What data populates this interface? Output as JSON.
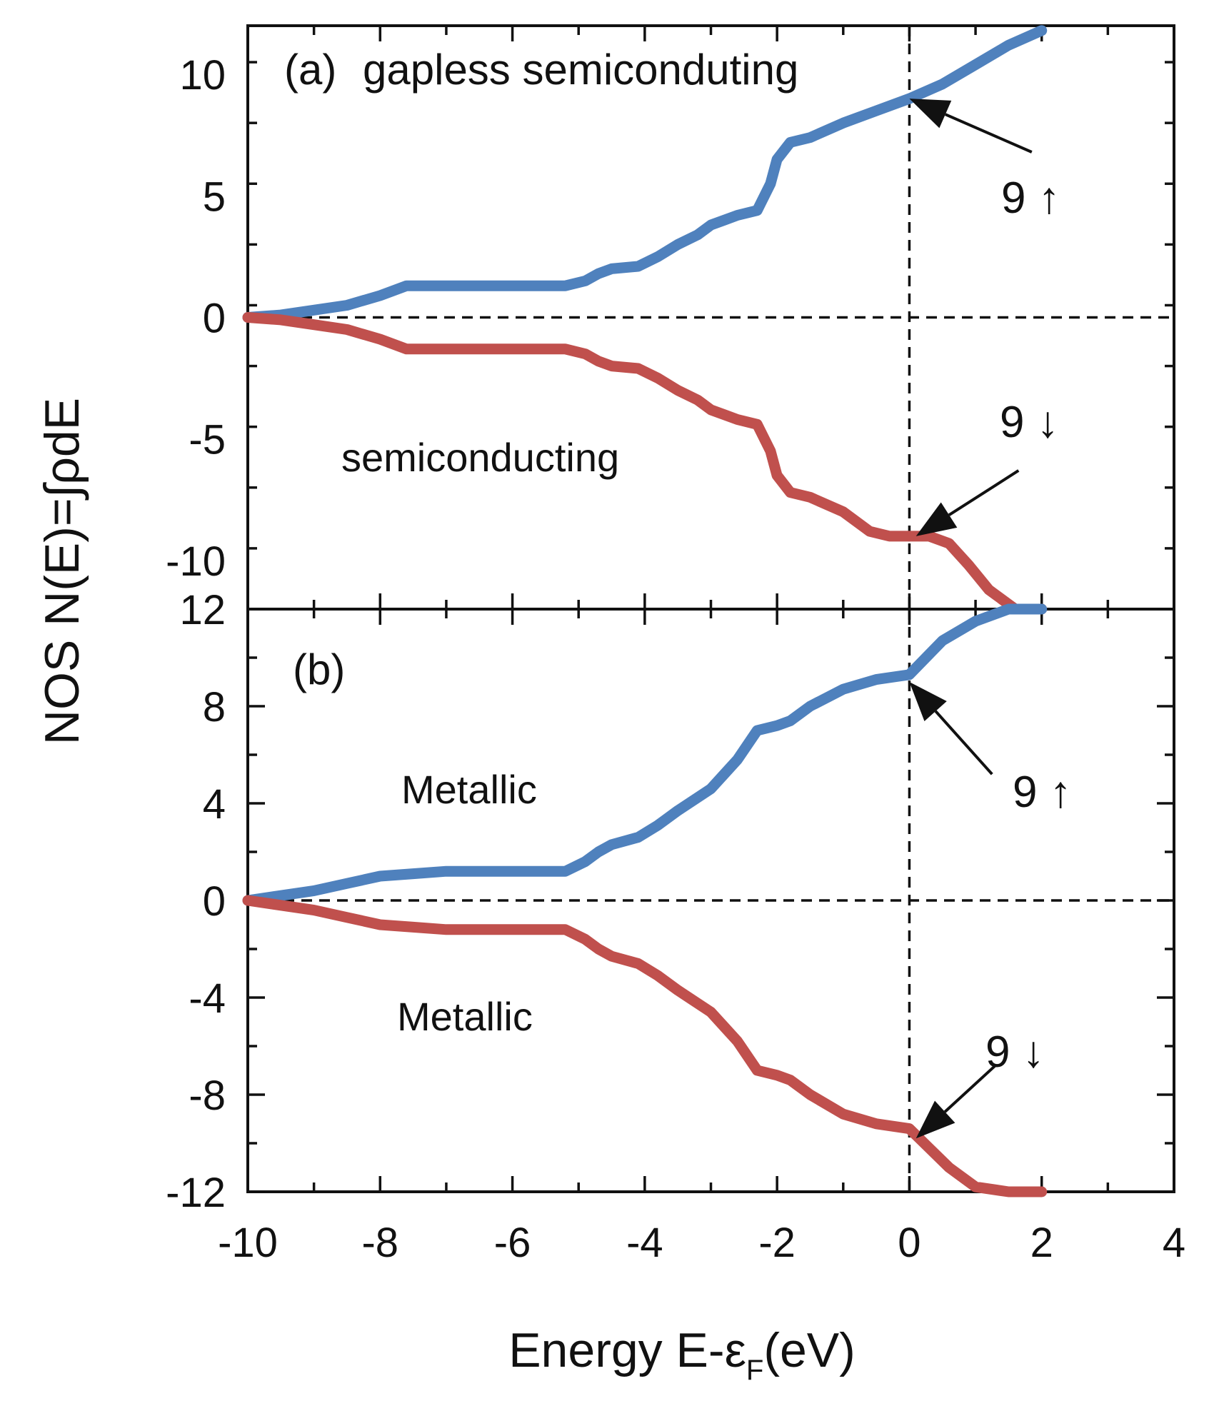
{
  "chart_data": {
    "type": "line",
    "xlabel": "Energy E-εF(eV)",
    "xlabel_main": "Energy E-",
    "xlabel_symbol": "ε",
    "xlabel_subscript": "F",
    "xlabel_unit": "(eV)",
    "ylabel": "NOS N(E)=∫ρdE",
    "xlim": [
      -10,
      4
    ],
    "x_ticks": [
      "-10",
      "-8",
      "-6",
      "-4",
      "-2",
      "0",
      "2",
      "4"
    ],
    "colors": {
      "spin_up": "#4f81bd",
      "spin_down": "#c0504d"
    },
    "panels": [
      {
        "id": "a",
        "label": "(a)",
        "title": "gapless semiconduting",
        "ylim": [
          -12,
          12
        ],
        "y_ticks": [
          "10",
          "5",
          "0",
          "-5",
          "-10",
          "12"
        ],
        "series": [
          {
            "name": "spin up",
            "x": [
              -10,
              -9.5,
              -9,
              -8.5,
              -8,
              -7.8,
              -7.6,
              -7,
              -6,
              -5.2,
              -4.9,
              -4.7,
              -4.5,
              -4.1,
              -3.8,
              -3.5,
              -3.2,
              -3,
              -2.6,
              -2.3,
              -2.1,
              -2,
              -1.8,
              -1.5,
              -1,
              -0.5,
              0,
              0.5,
              1,
              1.5,
              2
            ],
            "values": [
              0,
              0.1,
              0.3,
              0.5,
              0.9,
              1.1,
              1.3,
              1.3,
              1.3,
              1.3,
              1.5,
              1.8,
              2,
              2.1,
              2.5,
              3,
              3.4,
              3.8,
              4.2,
              4.4,
              5.5,
              6.5,
              7.2,
              7.4,
              8,
              8.5,
              9,
              9.6,
              10.4,
              11.2,
              11.8
            ],
            "annotation": "9 ↑"
          },
          {
            "name": "spin down",
            "x": [
              -10,
              -9.5,
              -9,
              -8.5,
              -8,
              -7.8,
              -7.6,
              -7,
              -6,
              -5.2,
              -4.9,
              -4.7,
              -4.5,
              -4.1,
              -3.8,
              -3.5,
              -3.2,
              -3,
              -2.6,
              -2.3,
              -2.1,
              -2,
              -1.8,
              -1.5,
              -1,
              -0.6,
              -0.3,
              0,
              0.3,
              0.6,
              0.9,
              1.2,
              1.6,
              2
            ],
            "values": [
              0,
              -0.1,
              -0.3,
              -0.5,
              -0.9,
              -1.1,
              -1.3,
              -1.3,
              -1.3,
              -1.3,
              -1.5,
              -1.8,
              -2,
              -2.1,
              -2.5,
              -3,
              -3.4,
              -3.8,
              -4.2,
              -4.4,
              -5.5,
              -6.5,
              -7.2,
              -7.4,
              -8,
              -8.8,
              -9,
              -9,
              -9,
              -9.3,
              -10.2,
              -11.2,
              -12,
              -12
            ],
            "annotation": "9 ↓"
          }
        ],
        "annotations": [
          "semiconducting"
        ]
      },
      {
        "id": "b",
        "label": "(b)",
        "ylim": [
          -12,
          12
        ],
        "y_ticks": [
          "8",
          "4",
          "0",
          "-4",
          "-8",
          "-12"
        ],
        "series": [
          {
            "name": "spin up",
            "x": [
              -10,
              -9.5,
              -9,
              -8.5,
              -8,
              -7.5,
              -7,
              -6,
              -5.2,
              -4.9,
              -4.7,
              -4.5,
              -4.1,
              -3.8,
              -3.5,
              -3,
              -2.6,
              -2.3,
              -2,
              -1.8,
              -1.5,
              -1,
              -0.5,
              0,
              0.5,
              1,
              1.5,
              2
            ],
            "values": [
              0,
              0.2,
              0.4,
              0.7,
              1,
              1.1,
              1.2,
              1.2,
              1.2,
              1.6,
              2,
              2.3,
              2.6,
              3.1,
              3.7,
              4.6,
              5.8,
              7,
              7.2,
              7.4,
              8,
              8.7,
              9.1,
              9.3,
              10.7,
              11.5,
              12,
              12
            ],
            "annotation": "9 ↑"
          },
          {
            "name": "spin down",
            "x": [
              -10,
              -9.5,
              -9,
              -8.5,
              -8,
              -7.5,
              -7,
              -6,
              -5.2,
              -4.9,
              -4.7,
              -4.5,
              -4.1,
              -3.8,
              -3.5,
              -3,
              -2.6,
              -2.3,
              -2,
              -1.8,
              -1.5,
              -1,
              -0.5,
              0,
              0.3,
              0.6,
              1,
              1.5,
              2
            ],
            "values": [
              0,
              -0.2,
              -0.4,
              -0.7,
              -1,
              -1.1,
              -1.2,
              -1.2,
              -1.2,
              -1.6,
              -2,
              -2.3,
              -2.6,
              -3.1,
              -3.7,
              -4.6,
              -5.8,
              -7,
              -7.2,
              -7.4,
              -8,
              -8.8,
              -9.2,
              -9.4,
              -10.2,
              -11,
              -11.8,
              -12,
              -12
            ],
            "annotation": "9 ↓"
          }
        ],
        "annotations": [
          "Metallic",
          "Metallic"
        ]
      }
    ]
  }
}
